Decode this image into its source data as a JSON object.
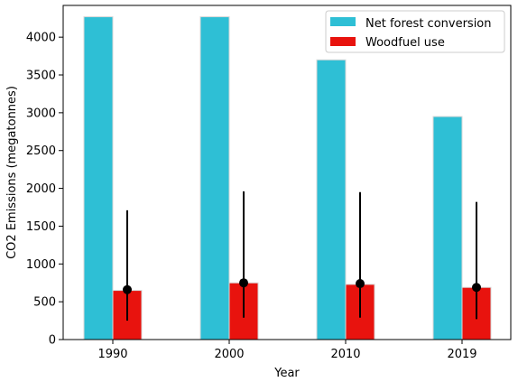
{
  "chart_data": {
    "type": "bar",
    "title": "",
    "xlabel": "Year",
    "ylabel": "CO2 Emissions (megatonnes)",
    "categories": [
      "1990",
      "2000",
      "2010",
      "2019"
    ],
    "ylim": [
      0,
      4420
    ],
    "yticks": [
      0,
      500,
      1000,
      1500,
      2000,
      2500,
      3000,
      3500,
      4000
    ],
    "grid": false,
    "legend_position": "top-right",
    "series": [
      {
        "name": "Net forest conversion",
        "color": "#2EBFD5",
        "values": [
          4270,
          4270,
          3700,
          2950
        ]
      },
      {
        "name": "Woodfuel use",
        "color": "#E8130E",
        "values": [
          650,
          750,
          730,
          690
        ],
        "point_estimate": [
          660,
          750,
          740,
          690
        ],
        "error_low": [
          250,
          290,
          290,
          270
        ],
        "error_high": [
          1710,
          1960,
          1950,
          1820
        ],
        "error_color": "#000000"
      }
    ]
  }
}
